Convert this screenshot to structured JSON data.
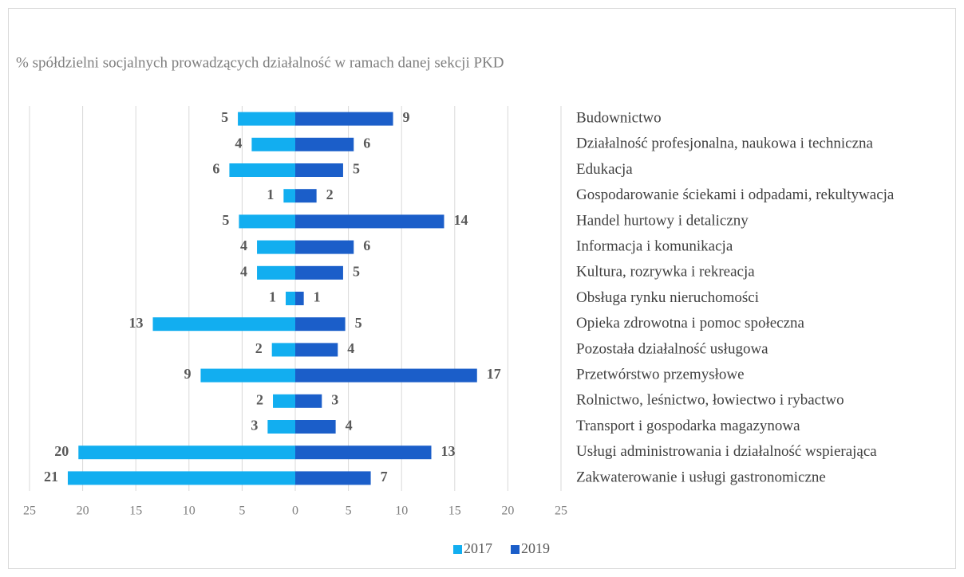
{
  "chart_data": {
    "type": "butterfly-bar",
    "title": "% spółdzielni socjalnych prowadzących działalność w ramach danej sekcji PKD",
    "categories": [
      "Budownictwo",
      "Działalność profesjonalna, naukowa i techniczna",
      "Edukacja",
      "Gospodarowanie ściekami i odpadami, rekultywacja",
      "Handel hurtowy i  detaliczny",
      "Informacja i komunikacja",
      "Kultura, rozrywka i rekreacja",
      "Obsługa rynku nieruchomości",
      "Opieka zdrowotna i pomoc społeczna",
      "Pozostała działalność usługowa",
      "Przetwórstwo przemysłowe",
      "Rolnictwo, leśnictwo, łowiectwo i rybactwo",
      "Transport i gospodarka magazynowa",
      "Usługi administrowania i  działalność wspierająca",
      "Zakwaterowanie i usługi gastronomiczne"
    ],
    "series": [
      {
        "name": "2017",
        "color": "#12aef0",
        "values": [
          -5.4,
          -4.1,
          -6.2,
          -1.1,
          -5.3,
          -3.6,
          -3.6,
          -0.9,
          -13.4,
          -2.2,
          -8.9,
          -2.1,
          -2.6,
          -20.4,
          -21.4
        ],
        "value_labels": [
          "5",
          "4",
          "6",
          "1",
          "5",
          "4",
          "4",
          "1",
          "13",
          "2",
          "9",
          "2",
          "3",
          "20",
          "21"
        ]
      },
      {
        "name": "2019",
        "color": "#1b5ec9",
        "values": [
          9.2,
          5.5,
          4.5,
          2.0,
          14.0,
          5.5,
          4.5,
          0.8,
          4.7,
          4.0,
          17.1,
          2.5,
          3.8,
          12.8,
          7.1
        ],
        "value_labels": [
          "9",
          "6",
          "5",
          "2",
          "14",
          "6",
          "5",
          "1",
          "5",
          "4",
          "17",
          "3",
          "4",
          "13",
          "7"
        ]
      }
    ],
    "xlim": [
      -25,
      25
    ],
    "xticks": [
      {
        "value": -25,
        "label": "25"
      },
      {
        "value": -20,
        "label": "20"
      },
      {
        "value": -15,
        "label": "15"
      },
      {
        "value": -10,
        "label": "10"
      },
      {
        "value": -5,
        "label": "5"
      },
      0,
      5,
      10,
      15,
      20,
      25
    ],
    "grid": true,
    "legend": "bottom"
  }
}
